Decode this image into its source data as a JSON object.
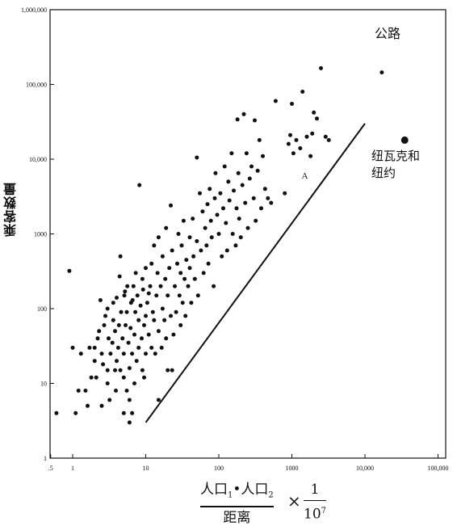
{
  "chart_data": {
    "type": "scatter",
    "title": "公路",
    "ylabel": "乘客数量",
    "xlabel": {
      "numerator": [
        "人口",
        "1",
        "•人口",
        "2"
      ],
      "denominator": "距离",
      "times": "×",
      "factor_numerator": "1",
      "factor_denominator_base": "10",
      "factor_denominator_exp": "7"
    },
    "xscale": "log",
    "yscale": "log",
    "xlim": [
      0.5,
      100000
    ],
    "ylim": [
      1,
      1000000
    ],
    "xticks": [
      {
        "value": 0.5,
        "label": ".5"
      },
      {
        "value": 1,
        "label": "1"
      },
      {
        "value": 10,
        "label": "10"
      },
      {
        "value": 100,
        "label": "100"
      },
      {
        "value": 1000,
        "label": "1000"
      },
      {
        "value": 10000,
        "label": "10,000"
      },
      {
        "value": 100000,
        "label": "100,000"
      }
    ],
    "yticks": [
      {
        "value": 1,
        "label": "1"
      },
      {
        "value": 10,
        "label": "10"
      },
      {
        "value": 100,
        "label": "100"
      },
      {
        "value": 1000,
        "label": "1000"
      },
      {
        "value": 10000,
        "label": "10,000"
      },
      {
        "value": 100000,
        "label": "100,000"
      },
      {
        "value": 1000000,
        "label": "1,000,000"
      }
    ],
    "grid": false,
    "line": {
      "label": "A",
      "points": [
        [
          10,
          3
        ],
        [
          10000,
          30000
        ]
      ],
      "label_at": [
        1500,
        5500
      ]
    },
    "highlight": {
      "label": "纽瓦克和纽约",
      "x": 35000,
      "y": 18000
    },
    "points": [
      [
        0.6,
        4
      ],
      [
        1.1,
        4
      ],
      [
        1.2,
        8
      ],
      [
        0.9,
        320
      ],
      [
        1.0,
        30
      ],
      [
        1.3,
        25
      ],
      [
        1.5,
        8
      ],
      [
        1.6,
        5
      ],
      [
        1.8,
        12
      ],
      [
        1.7,
        30
      ],
      [
        2.0,
        20
      ],
      [
        2.0,
        30
      ],
      [
        2.1,
        12
      ],
      [
        2.2,
        40
      ],
      [
        2.3,
        50
      ],
      [
        2.4,
        130
      ],
      [
        2.5,
        5
      ],
      [
        2.5,
        25
      ],
      [
        2.6,
        18
      ],
      [
        2.7,
        60
      ],
      [
        2.8,
        80
      ],
      [
        3.0,
        10
      ],
      [
        3.0,
        15
      ],
      [
        3.0,
        100
      ],
      [
        3.1,
        40
      ],
      [
        3.2,
        6
      ],
      [
        3.3,
        25
      ],
      [
        3.5,
        35
      ],
      [
        3.6,
        70
      ],
      [
        3.6,
        120
      ],
      [
        3.8,
        15
      ],
      [
        3.8,
        50
      ],
      [
        3.9,
        8
      ],
      [
        4.0,
        20
      ],
      [
        4.0,
        140
      ],
      [
        4.2,
        30
      ],
      [
        4.3,
        60
      ],
      [
        4.4,
        270
      ],
      [
        4.5,
        15
      ],
      [
        4.5,
        500
      ],
      [
        4.6,
        90
      ],
      [
        4.8,
        40
      ],
      [
        5.0,
        4
      ],
      [
        5.0,
        12
      ],
      [
        5.0,
        25
      ],
      [
        5.1,
        150
      ],
      [
        5.2,
        170
      ],
      [
        5.3,
        60
      ],
      [
        5.5,
        8
      ],
      [
        5.5,
        90
      ],
      [
        5.6,
        200
      ],
      [
        5.8,
        35
      ],
      [
        6.0,
        3
      ],
      [
        6.0,
        6
      ],
      [
        6.0,
        16
      ],
      [
        6.2,
        55
      ],
      [
        6.3,
        120
      ],
      [
        6.5,
        4
      ],
      [
        6.5,
        25
      ],
      [
        6.6,
        130
      ],
      [
        6.8,
        200
      ],
      [
        7.0,
        10
      ],
      [
        7.0,
        45
      ],
      [
        7.2,
        90
      ],
      [
        7.3,
        300
      ],
      [
        7.5,
        20
      ],
      [
        7.7,
        150
      ],
      [
        8.0,
        30
      ],
      [
        8.0,
        70
      ],
      [
        8.2,
        4500
      ],
      [
        8.5,
        110
      ],
      [
        8.8,
        40
      ],
      [
        9.0,
        15
      ],
      [
        9.0,
        250
      ],
      [
        9.2,
        180
      ],
      [
        9.5,
        12
      ],
      [
        9.5,
        60
      ],
      [
        10,
        25
      ],
      [
        10,
        80
      ],
      [
        10,
        350
      ],
      [
        10.5,
        120
      ],
      [
        11,
        45
      ],
      [
        11,
        160
      ],
      [
        11.5,
        200
      ],
      [
        12,
        30
      ],
      [
        12,
        400
      ],
      [
        12.5,
        90
      ],
      [
        13,
        70
      ],
      [
        13,
        700
      ],
      [
        13.5,
        25
      ],
      [
        14,
        150
      ],
      [
        14.5,
        300
      ],
      [
        15,
        6
      ],
      [
        15,
        50
      ],
      [
        15,
        900
      ],
      [
        16,
        200
      ],
      [
        16.5,
        30
      ],
      [
        17,
        100
      ],
      [
        17,
        500
      ],
      [
        18,
        70
      ],
      [
        18.5,
        250
      ],
      [
        19,
        40
      ],
      [
        19,
        1200
      ],
      [
        20,
        15
      ],
      [
        20,
        150
      ],
      [
        21,
        350
      ],
      [
        22,
        80
      ],
      [
        22,
        2400
      ],
      [
        23,
        15
      ],
      [
        23,
        600
      ],
      [
        24,
        45
      ],
      [
        25,
        200
      ],
      [
        26,
        90
      ],
      [
        27,
        400
      ],
      [
        28,
        1000
      ],
      [
        29,
        150
      ],
      [
        30,
        60
      ],
      [
        30,
        300
      ],
      [
        31,
        700
      ],
      [
        32,
        120
      ],
      [
        33,
        1500
      ],
      [
        34,
        250
      ],
      [
        35,
        80
      ],
      [
        36,
        450
      ],
      [
        38,
        200
      ],
      [
        40,
        900
      ],
      [
        40,
        350
      ],
      [
        42,
        120
      ],
      [
        44,
        1600
      ],
      [
        45,
        500
      ],
      [
        47,
        250
      ],
      [
        50,
        10500
      ],
      [
        50,
        800
      ],
      [
        52,
        150
      ],
      [
        55,
        3500
      ],
      [
        57,
        600
      ],
      [
        60,
        2000
      ],
      [
        62,
        300
      ],
      [
        65,
        1200
      ],
      [
        68,
        700
      ],
      [
        70,
        2500
      ],
      [
        72,
        400
      ],
      [
        75,
        4000
      ],
      [
        78,
        1500
      ],
      [
        80,
        900
      ],
      [
        85,
        200
      ],
      [
        88,
        3000
      ],
      [
        90,
        6500
      ],
      [
        95,
        1800
      ],
      [
        100,
        1000
      ],
      [
        105,
        3500
      ],
      [
        110,
        500
      ],
      [
        115,
        2200
      ],
      [
        120,
        8000
      ],
      [
        125,
        1400
      ],
      [
        130,
        600
      ],
      [
        135,
        5000
      ],
      [
        140,
        2800
      ],
      [
        150,
        12000
      ],
      [
        155,
        1000
      ],
      [
        160,
        3800
      ],
      [
        170,
        700
      ],
      [
        175,
        2200
      ],
      [
        180,
        34000
      ],
      [
        185,
        6500
      ],
      [
        190,
        1600
      ],
      [
        200,
        900
      ],
      [
        210,
        4500
      ],
      [
        220,
        40000
      ],
      [
        230,
        2600
      ],
      [
        240,
        12000
      ],
      [
        250,
        1200
      ],
      [
        265,
        5500
      ],
      [
        280,
        8000
      ],
      [
        300,
        3000
      ],
      [
        310,
        33000
      ],
      [
        320,
        1500
      ],
      [
        340,
        7000
      ],
      [
        360,
        18000
      ],
      [
        380,
        2200
      ],
      [
        400,
        11000
      ],
      [
        430,
        4000
      ],
      [
        470,
        3000
      ],
      [
        520,
        2600
      ],
      [
        600,
        60000
      ],
      [
        800,
        3500
      ],
      [
        900,
        16000
      ],
      [
        950,
        21000
      ],
      [
        1000,
        55000
      ],
      [
        1050,
        12000
      ],
      [
        1150,
        18000
      ],
      [
        1300,
        14000
      ],
      [
        1400,
        80000
      ],
      [
        1600,
        20000
      ],
      [
        1800,
        11000
      ],
      [
        1900,
        22000
      ],
      [
        2000,
        42000
      ],
      [
        2200,
        35000
      ],
      [
        2500,
        165000
      ],
      [
        2900,
        20000
      ],
      [
        3200,
        18000
      ],
      [
        17000,
        145000
      ]
    ]
  }
}
